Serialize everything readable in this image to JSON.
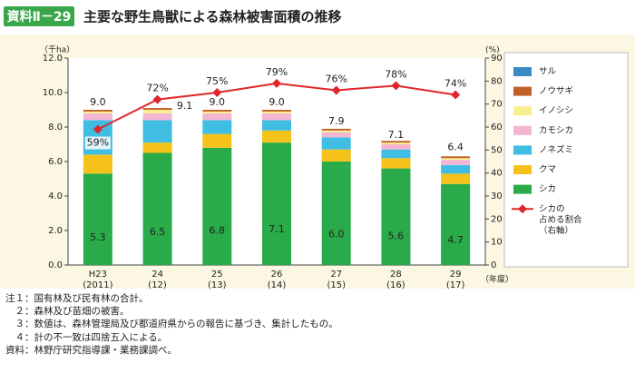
{
  "header": {
    "badge": "資料Ⅱ－29",
    "title": "主要な野生鳥獣による森林被害面積の推移"
  },
  "chart_data": {
    "type": "bar",
    "stacked": true,
    "y_unit": "（千ha）",
    "y2_unit": "(%)",
    "x_unit": "（年度）",
    "categories": [
      "H23\n(2011)",
      "24\n(12)",
      "25\n(13)",
      "26\n(14)",
      "27\n(15)",
      "28\n(16)",
      "29\n(17)"
    ],
    "series": [
      {
        "name": "シカ",
        "color": "#2aab4a",
        "values": [
          5.3,
          6.5,
          6.8,
          7.1,
          6.0,
          5.6,
          4.7
        ],
        "value_labels": [
          "5.3",
          "6.5",
          "6.8",
          "7.1",
          "6.0",
          "5.6",
          "4.7"
        ]
      },
      {
        "name": "クマ",
        "color": "#f5c21b",
        "values": [
          1.1,
          0.6,
          0.8,
          0.7,
          0.7,
          0.6,
          0.6
        ]
      },
      {
        "name": "ノネズミ",
        "color": "#40bde3",
        "values": [
          2.0,
          1.3,
          0.8,
          0.6,
          0.7,
          0.5,
          0.5
        ]
      },
      {
        "name": "カモシカ",
        "color": "#f2b6d2",
        "values": [
          0.4,
          0.4,
          0.4,
          0.4,
          0.3,
          0.3,
          0.3
        ]
      },
      {
        "name": "イノシシ",
        "color": "#f8f08e",
        "values": [
          0.1,
          0.2,
          0.1,
          0.1,
          0.1,
          0.1,
          0.1
        ]
      },
      {
        "name": "ノウサギ",
        "color": "#c0612a",
        "values": [
          0.1,
          0.1,
          0.1,
          0.1,
          0.1,
          0.1,
          0.1
        ]
      },
      {
        "name": "サル",
        "color": "#3a8ac6",
        "values": [
          0.0,
          0.0,
          0.0,
          0.0,
          0.0,
          0.0,
          0.0
        ]
      },
      {
        "name": "シカの\n占める割合\n（右軸）",
        "type": "line",
        "axis": "y2",
        "color": "#e1262b",
        "values": [
          59,
          72,
          75,
          79,
          76,
          78,
          74
        ],
        "value_labels": [
          "59%",
          "72%",
          "75%",
          "79%",
          "76%",
          "78%",
          "74%"
        ]
      }
    ],
    "totals": [
      9.0,
      9.1,
      9.0,
      9.0,
      7.9,
      7.1,
      6.4
    ],
    "totals_labels": [
      "9.0",
      "9.1",
      "9.0",
      "9.0",
      "7.9",
      "7.1",
      "6.4"
    ],
    "ylim": [
      0,
      12
    ],
    "yticks": [
      {
        "value": 0,
        "label": "0.0"
      },
      {
        "value": 2,
        "label": "2.0"
      },
      {
        "value": 4,
        "label": "4.0"
      },
      {
        "value": 6,
        "label": "6.0"
      },
      {
        "value": 8,
        "label": "8.0"
      },
      {
        "value": 10,
        "label": "10.0"
      },
      {
        "value": 12,
        "label": "12.0"
      }
    ],
    "y2lim": [
      0,
      90
    ],
    "y2ticks": [
      0,
      10,
      20,
      30,
      40,
      50,
      60,
      70,
      80,
      90
    ],
    "grid": false,
    "legend": "right"
  },
  "notes": [
    "注１：国有林及び民有林の合計。",
    "　２：森林及び苗畑の被害。",
    "　３：数値は、森林管理局及び都道府県からの報告に基づき、集計したもの。",
    "　４：計の不一致は四捨五入による。",
    "資料：林野庁研究指導課・業務課調べ。"
  ]
}
